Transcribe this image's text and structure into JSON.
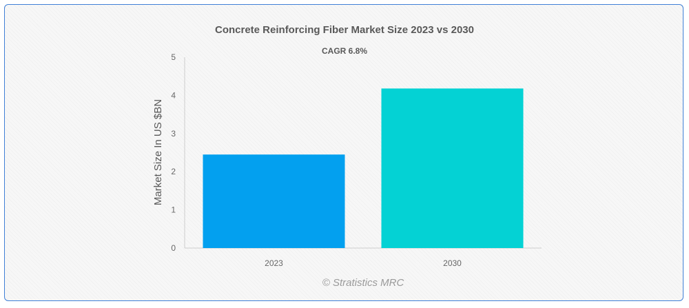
{
  "chart_data": {
    "type": "bar",
    "title": "Concrete Reinforcing Fiber Market Size 2023 vs 2030",
    "subtitle": "CAGR 6.8%",
    "xlabel": "",
    "ylabel": "Market Size In US $BN",
    "categories": [
      "2023",
      "2030"
    ],
    "values": [
      2.45,
      4.18
    ],
    "ylim": [
      0,
      5
    ],
    "yticks": [
      "0",
      "1",
      "2",
      "3",
      "4",
      "5"
    ],
    "colors": [
      "#03a0ef",
      "#04d2d4"
    ],
    "grid": false,
    "legend": "none"
  },
  "watermark": "© Stratistics MRC"
}
